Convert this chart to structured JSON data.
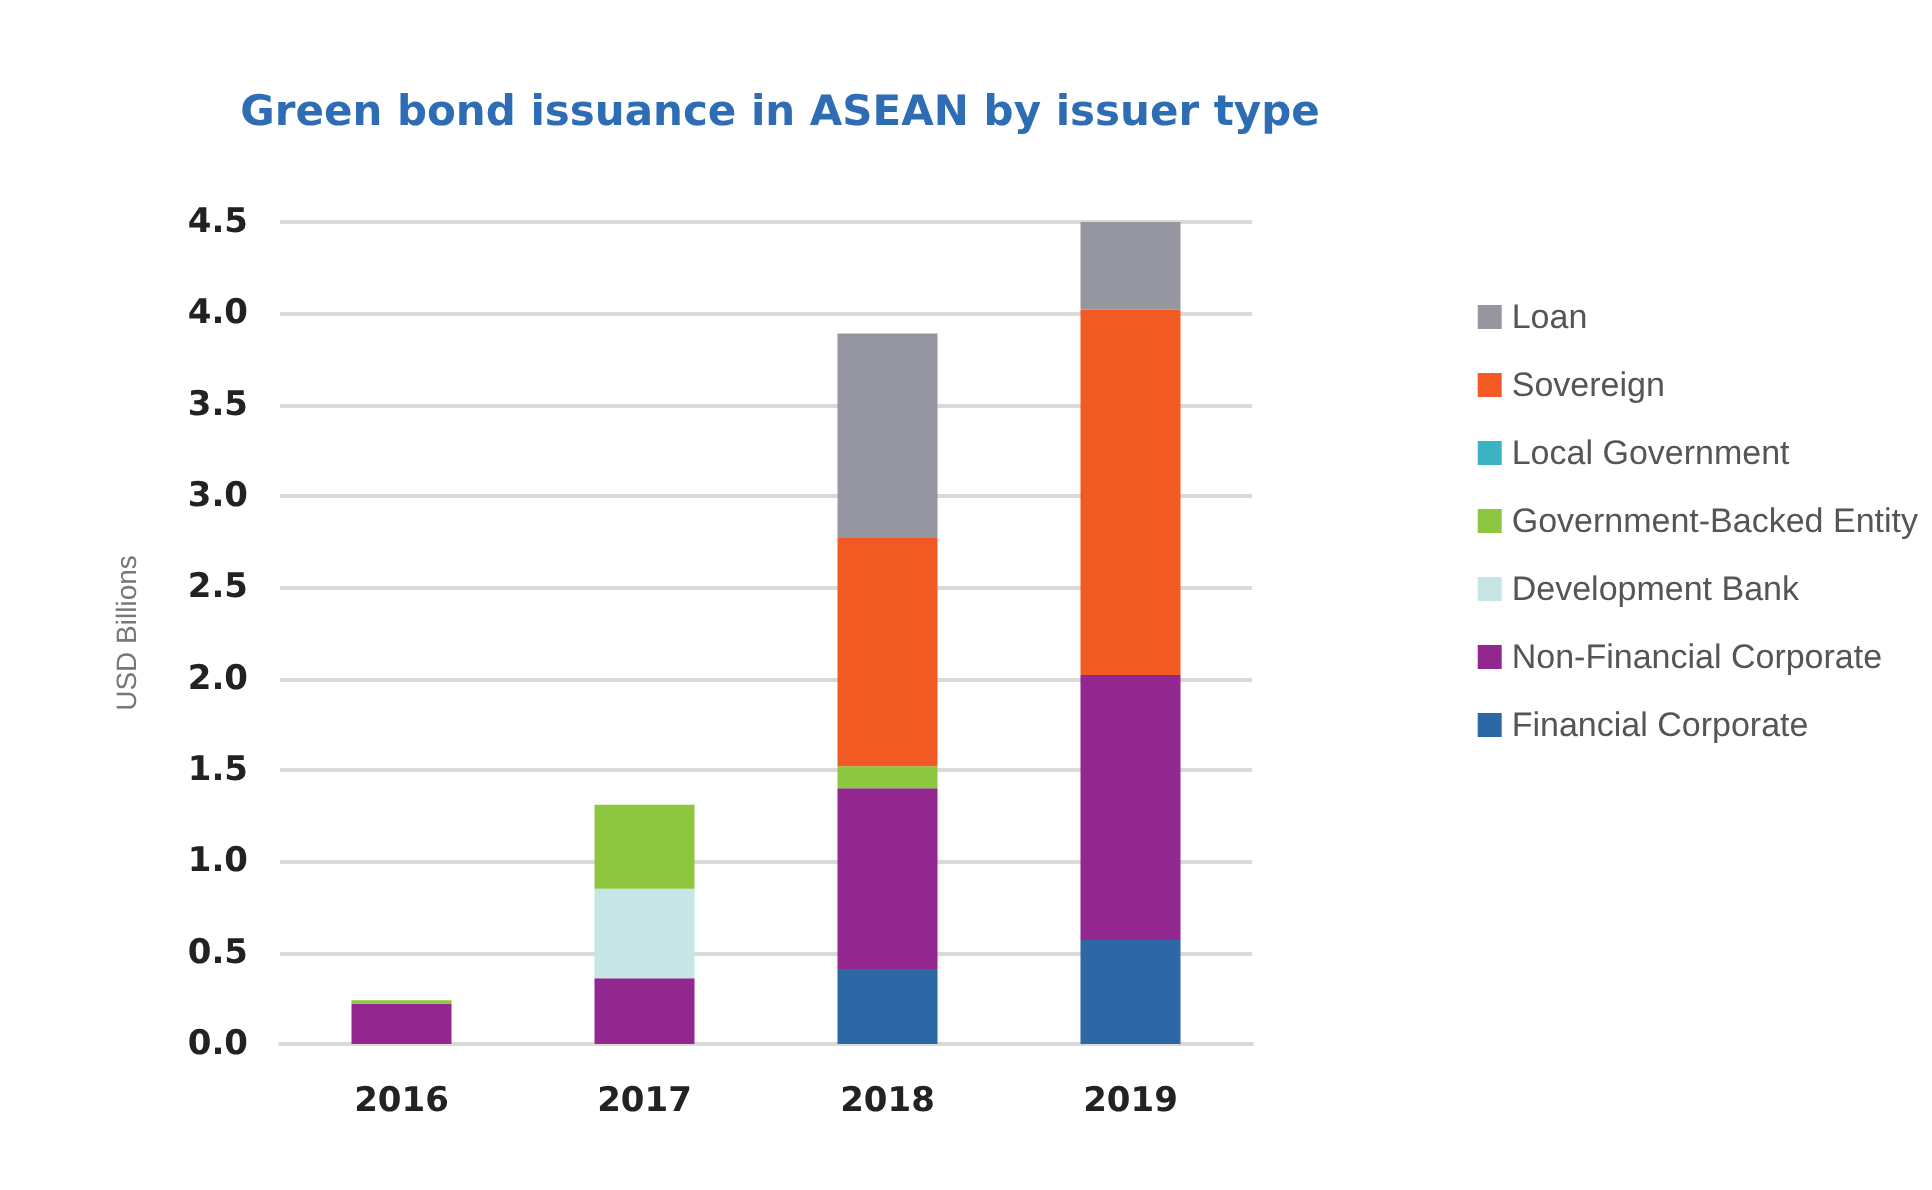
{
  "chart_data": {
    "type": "bar",
    "title": "Green bond issuance in ASEAN by issuer type",
    "ylabel": "USD Billions",
    "categories": [
      "2016",
      "2017",
      "2018",
      "2019"
    ],
    "stacked": true,
    "series": [
      {
        "name": "Financial Corporate",
        "color": "#2e67a6",
        "values": [
          0,
          0,
          0.41,
          0.57
        ]
      },
      {
        "name": "Non-Financial Corporate",
        "color": "#92278f",
        "values": [
          0.22,
          0.36,
          0.99,
          1.45
        ]
      },
      {
        "name": "Development Bank",
        "color": "#c6e6e5",
        "values": [
          0,
          0.49,
          0,
          0
        ]
      },
      {
        "name": "Government-Backed Entity",
        "color": "#8dc63f",
        "values": [
          0.02,
          0.46,
          0.12,
          0
        ]
      },
      {
        "name": "Local Government",
        "color": "#3bb3c3",
        "values": [
          0,
          0,
          0,
          0
        ]
      },
      {
        "name": "Sovereign",
        "color": "#f15a22",
        "values": [
          0,
          0,
          1.25,
          2.0
        ]
      },
      {
        "name": "Loan",
        "color": "#9696a0",
        "values": [
          0,
          0,
          1.12,
          0.48
        ]
      }
    ],
    "ylim": [
      0,
      4.5
    ],
    "yticks": [
      {
        "value": 0,
        "label": "0.0"
      },
      0.5,
      {
        "value": 1,
        "label": "1.0"
      },
      1.5,
      {
        "value": 2,
        "label": "2.0"
      },
      2.5,
      {
        "value": 3,
        "label": "3.0"
      },
      3.5,
      {
        "value": 4,
        "label": "4.0"
      },
      4.5
    ],
    "grid": "y",
    "legend": "right"
  }
}
